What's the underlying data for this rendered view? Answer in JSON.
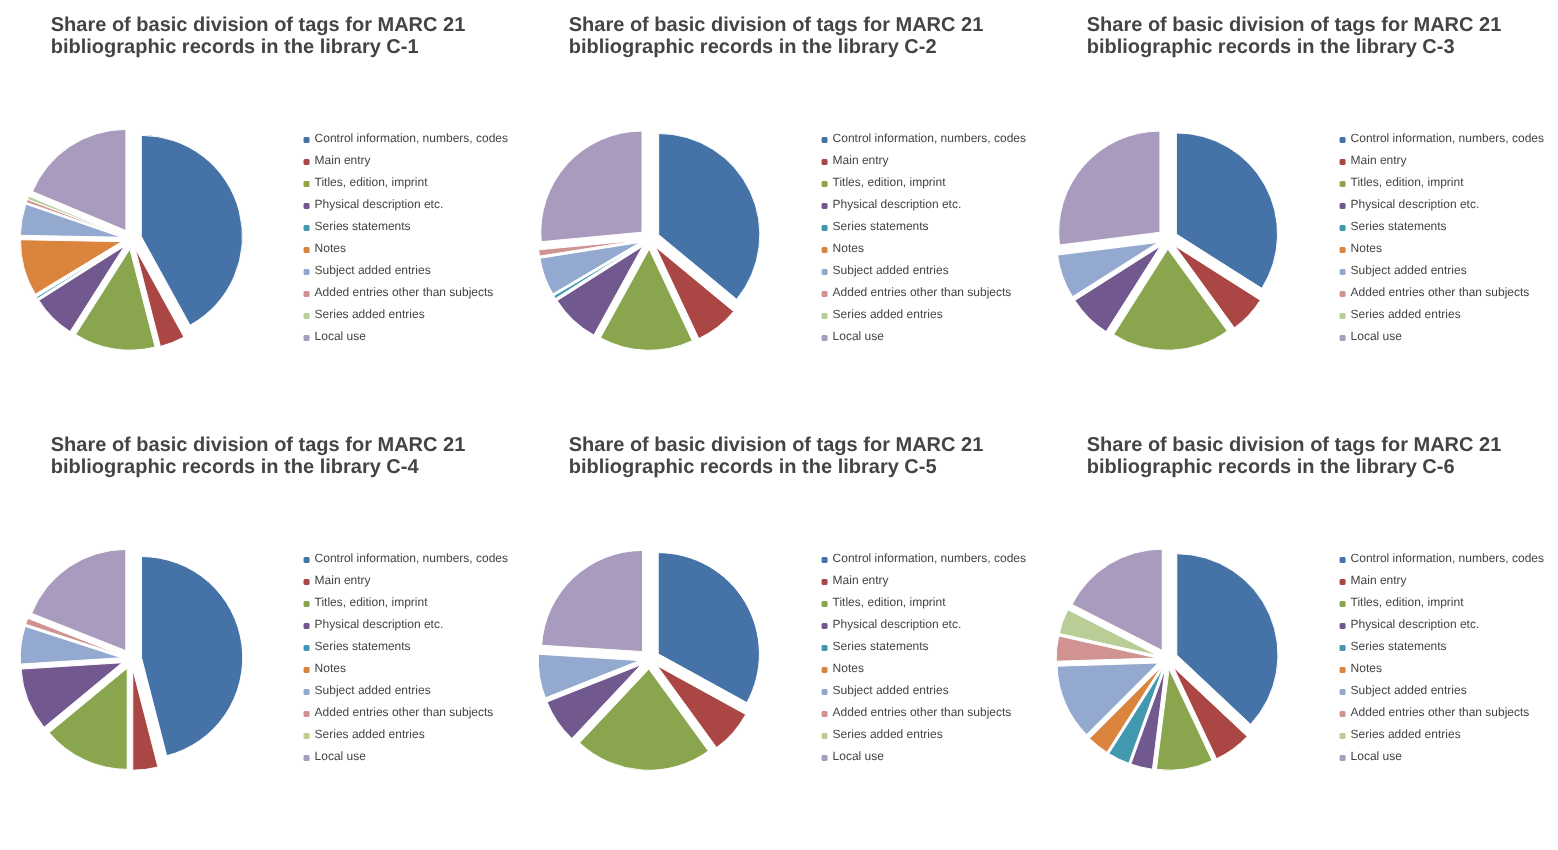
{
  "chart_data": [
    {
      "type": "pie",
      "title": "Share of basic division of tags for MARC 21 bibliographic records in the library C-1",
      "categories": [
        "Control information, numbers, codes",
        "Main entry",
        "Titles, edition, imprint",
        "Physical description etc.",
        "Series statements",
        "Notes",
        "Subject added entries",
        "Added entries other than subjects",
        "Series added entries",
        "Local use"
      ],
      "values": [
        42,
        4,
        13,
        7,
        0.3,
        9,
        5,
        0.5,
        0.5,
        18.7
      ],
      "colors": [
        "#4572a7",
        "#aa4643",
        "#89a54e",
        "#71588f",
        "#4198af",
        "#db843d",
        "#93a9cf",
        "#d19392",
        "#b9cd96",
        "#a99bbd"
      ],
      "legend": "right"
    },
    {
      "type": "pie",
      "title": "Share of basic division of tags for MARC 21 bibliographic records in the library C-2",
      "categories": [
        "Control information, numbers, codes",
        "Main entry",
        "Titles, edition, imprint",
        "Physical description etc.",
        "Series statements",
        "Notes",
        "Subject added entries",
        "Added entries other than subjects",
        "Series added entries",
        "Local use"
      ],
      "values": [
        36,
        7,
        15,
        8,
        0.5,
        0,
        6,
        1,
        0,
        26.5
      ],
      "colors": [
        "#4572a7",
        "#aa4643",
        "#89a54e",
        "#71588f",
        "#4198af",
        "#db843d",
        "#93a9cf",
        "#d19392",
        "#b9cd96",
        "#a99bbd"
      ],
      "legend": "right"
    },
    {
      "type": "pie",
      "title": "Share of basic division of tags for MARC 21 bibliographic records in the library C-3",
      "categories": [
        "Control information, numbers, codes",
        "Main entry",
        "Titles, edition, imprint",
        "Physical description etc.",
        "Series statements",
        "Notes",
        "Subject added entries",
        "Added entries other than subjects",
        "Series added entries",
        "Local use"
      ],
      "values": [
        34,
        6,
        19,
        7,
        0,
        0,
        7,
        0,
        0,
        27
      ],
      "colors": [
        "#4572a7",
        "#aa4643",
        "#89a54e",
        "#71588f",
        "#4198af",
        "#db843d",
        "#93a9cf",
        "#d19392",
        "#b9cd96",
        "#a99bbd"
      ],
      "legend": "right"
    },
    {
      "type": "pie",
      "title": "Share of basic division of tags for MARC 21 bibliographic records in the library C-4",
      "categories": [
        "Control information, numbers, codes",
        "Main entry",
        "Titles, edition, imprint",
        "Physical description etc.",
        "Series statements",
        "Notes",
        "Subject added entries",
        "Added entries other than subjects",
        "Series added entries",
        "Local use"
      ],
      "values": [
        46,
        4,
        14,
        10,
        0,
        0,
        6,
        1,
        0,
        19
      ],
      "colors": [
        "#4572a7",
        "#aa4643",
        "#89a54e",
        "#71588f",
        "#4198af",
        "#db843d",
        "#93a9cf",
        "#d19392",
        "#b9cd96",
        "#a99bbd"
      ],
      "legend": "right"
    },
    {
      "type": "pie",
      "title": "Share of basic division of tags for MARC 21 bibliographic records in the library C-5",
      "categories": [
        "Control information, numbers, codes",
        "Main entry",
        "Titles, edition, imprint",
        "Physical description etc.",
        "Series statements",
        "Notes",
        "Subject added entries",
        "Added entries other than subjects",
        "Series added entries",
        "Local use"
      ],
      "values": [
        33,
        7,
        22,
        7,
        0,
        0,
        7,
        0,
        0,
        24
      ],
      "colors": [
        "#4572a7",
        "#aa4643",
        "#89a54e",
        "#71588f",
        "#4198af",
        "#db843d",
        "#93a9cf",
        "#d19392",
        "#b9cd96",
        "#a99bbd"
      ],
      "legend": "right"
    },
    {
      "type": "pie",
      "title": "Share of basic division of tags for MARC 21 bibliographic records in the library C-6",
      "categories": [
        "Control information, numbers, codes",
        "Main entry",
        "Titles, edition, imprint",
        "Physical description etc.",
        "Series statements",
        "Notes",
        "Subject added entries",
        "Added entries other than subjects",
        "Series added entries",
        "Local use"
      ],
      "values": [
        37,
        6,
        9,
        3.5,
        3.5,
        3.5,
        12,
        4,
        4,
        17.5
      ],
      "colors": [
        "#4572a7",
        "#aa4643",
        "#89a54e",
        "#71588f",
        "#4198af",
        "#db843d",
        "#93a9cf",
        "#d19392",
        "#b9cd96",
        "#a99bbd"
      ],
      "legend": "right"
    }
  ]
}
